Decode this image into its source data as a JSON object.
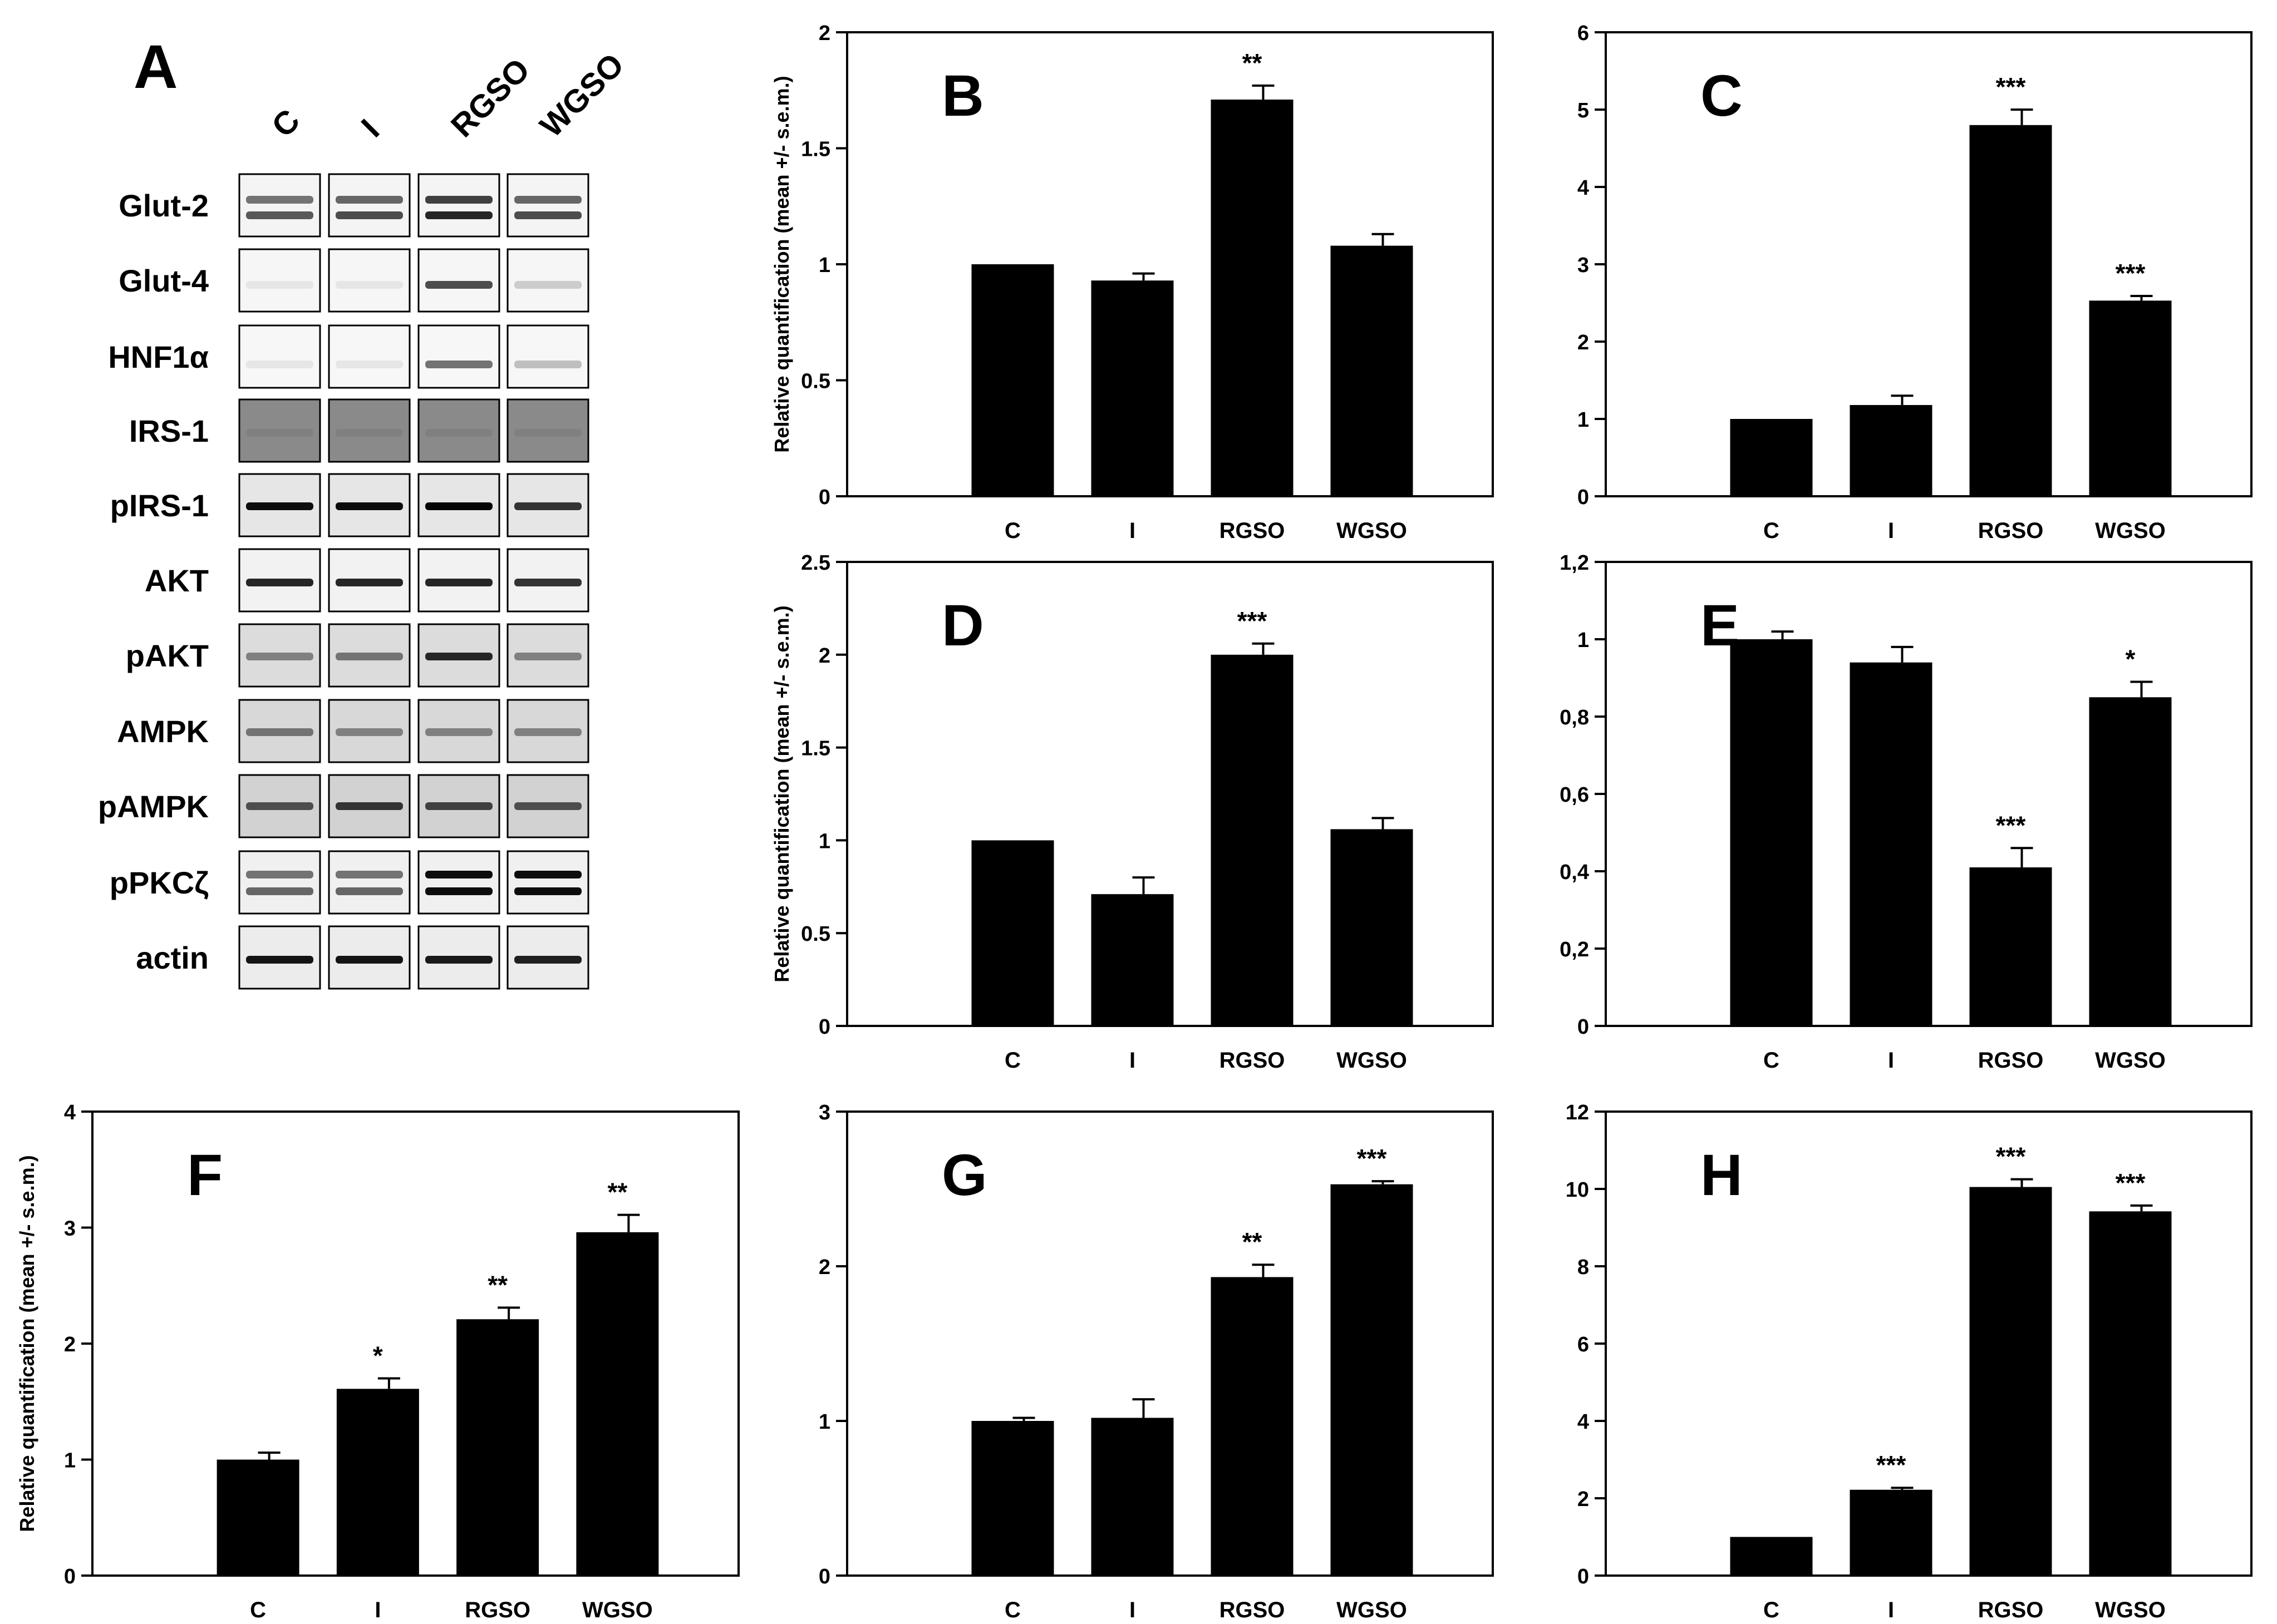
{
  "panel_a": {
    "label": "A",
    "lanes": [
      "C",
      "I",
      "RGSO",
      "WGSO"
    ],
    "proteins": [
      "Glut-2",
      "Glut-4",
      "HNF1α",
      "IRS-1",
      "pIRS-1",
      "AKT",
      "pAKT",
      "AMPK",
      "pAMPK",
      "pPKCζ",
      "actin"
    ]
  },
  "chart_data": [
    {
      "type": "bar",
      "panel": "B",
      "categories": [
        "C",
        "I",
        "RGSO",
        "WGSO"
      ],
      "values": [
        1.0,
        0.93,
        1.71,
        1.08
      ],
      "errors": [
        0,
        0.03,
        0.06,
        0.05
      ],
      "significance": [
        "",
        "",
        "**",
        ""
      ],
      "ylim": [
        0,
        2
      ],
      "ticks": [
        "0",
        "0.5",
        "1",
        "1.5",
        "2"
      ],
      "ylabel": "Relative quantification (mean +/- s.e.m.)"
    },
    {
      "type": "bar",
      "panel": "C",
      "categories": [
        "C",
        "I",
        "RGSO",
        "WGSO"
      ],
      "values": [
        1.0,
        1.18,
        4.8,
        2.53
      ],
      "errors": [
        0,
        0.12,
        0.2,
        0.06
      ],
      "significance": [
        "",
        "",
        "***",
        "***"
      ],
      "ylim": [
        0,
        6
      ],
      "ticks": [
        "0",
        "1",
        "2",
        "3",
        "4",
        "5",
        "6"
      ],
      "ylabel": ""
    },
    {
      "type": "bar",
      "panel": "D",
      "categories": [
        "C",
        "I",
        "RGSO",
        "WGSO"
      ],
      "values": [
        1.0,
        0.71,
        2.0,
        1.06
      ],
      "errors": [
        0,
        0.09,
        0.06,
        0.06
      ],
      "significance": [
        "",
        "",
        "***",
        ""
      ],
      "ylim": [
        0,
        2.5
      ],
      "ticks": [
        "0",
        "0.5",
        "1",
        "1.5",
        "2",
        "2.5"
      ],
      "ylabel": "Relative quantification (mean +/- s.e.m.)"
    },
    {
      "type": "bar",
      "panel": "E",
      "categories": [
        "C",
        "I",
        "RGSO",
        "WGSO"
      ],
      "values": [
        1.0,
        0.94,
        0.41,
        0.85
      ],
      "errors": [
        0.02,
        0.04,
        0.05,
        0.04
      ],
      "significance": [
        "",
        "",
        "***",
        "*"
      ],
      "ylim": [
        0,
        1.2
      ],
      "ticks": [
        "0",
        "0,2",
        "0,4",
        "0,6",
        "0,8",
        "1",
        "1,2"
      ],
      "ylabel": ""
    },
    {
      "type": "bar",
      "panel": "F",
      "categories": [
        "C",
        "I",
        "RGSO",
        "WGSO"
      ],
      "values": [
        1.0,
        1.61,
        2.21,
        2.96
      ],
      "errors": [
        0.06,
        0.09,
        0.1,
        0.15
      ],
      "significance": [
        "",
        "*",
        "**",
        "**"
      ],
      "ylim": [
        0,
        4
      ],
      "ticks": [
        "0",
        "1",
        "2",
        "3",
        "4"
      ],
      "ylabel": "Relative quantification (mean +/- s.e.m.)"
    },
    {
      "type": "bar",
      "panel": "G",
      "categories": [
        "C",
        "I",
        "RGSO",
        "WGSO"
      ],
      "values": [
        1.0,
        1.02,
        1.93,
        2.53
      ],
      "errors": [
        0.02,
        0.12,
        0.08,
        0.02
      ],
      "significance": [
        "",
        "",
        "**",
        "***"
      ],
      "ylim": [
        0,
        3
      ],
      "ticks": [
        "0",
        "1",
        "2",
        "3"
      ],
      "ylabel": ""
    },
    {
      "type": "bar",
      "panel": "H",
      "categories": [
        "C",
        "I",
        "RGSO",
        "WGSO"
      ],
      "values": [
        1.0,
        2.22,
        10.05,
        9.42
      ],
      "errors": [
        0,
        0.05,
        0.2,
        0.15
      ],
      "significance": [
        "",
        "***",
        "***",
        "***"
      ],
      "ylim": [
        0,
        12
      ],
      "ticks": [
        "0",
        "2",
        "4",
        "6",
        "8",
        "10",
        "12"
      ],
      "ylabel": ""
    }
  ]
}
